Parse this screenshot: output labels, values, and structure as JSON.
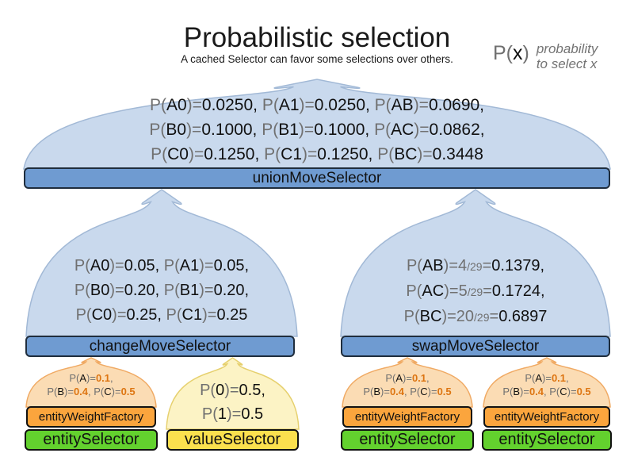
{
  "header": {
    "title": "Probabilistic selection",
    "subtitle": "A cached Selector can favor some selections over others."
  },
  "legend": {
    "symbol_segs": [
      {
        "t": "P(",
        "c": "g"
      },
      {
        "t": "x",
        "c": "k"
      },
      {
        "t": ")",
        "c": "g"
      }
    ],
    "desc_line1": "probability",
    "desc_line2": "to select x"
  },
  "colors": {
    "blue_dome_fill": "#c9d9ed",
    "blue_dome_stroke": "#a2b9d6",
    "blue_bar_fill": "#6f9bd1",
    "orange_dome_fill": "#fbdcb4",
    "orange_dome_stroke": "#f0aa64",
    "yellow_dome_fill": "#fcf3c5",
    "yellow_dome_stroke": "#e6d06e",
    "orange_bar_fill": "#fba53d",
    "green_bar_fill": "#63d12e",
    "yellow_bar_fill": "#fbe04e",
    "gray_text": "#707070",
    "orange_value_text": "#dd7511"
  },
  "union": {
    "bar_label": "unionMoveSelector",
    "lines": [
      [
        {
          "t": "P(",
          "c": "g"
        },
        {
          "t": "A0",
          "c": "k"
        },
        {
          "t": ")=",
          "c": "g"
        },
        {
          "t": "0.0250, ",
          "c": "k"
        },
        {
          "t": "P(",
          "c": "g"
        },
        {
          "t": "A1",
          "c": "k"
        },
        {
          "t": ")=",
          "c": "g"
        },
        {
          "t": "0.0250, ",
          "c": "k"
        },
        {
          "t": "P(",
          "c": "g"
        },
        {
          "t": "AB",
          "c": "k"
        },
        {
          "t": ")=",
          "c": "g"
        },
        {
          "t": "0.0690,",
          "c": "k"
        }
      ],
      [
        {
          "t": "P(",
          "c": "g"
        },
        {
          "t": "B0",
          "c": "k"
        },
        {
          "t": ")=",
          "c": "g"
        },
        {
          "t": "0.1000, ",
          "c": "k"
        },
        {
          "t": "P(",
          "c": "g"
        },
        {
          "t": "B1",
          "c": "k"
        },
        {
          "t": ")=",
          "c": "g"
        },
        {
          "t": "0.1000, ",
          "c": "k"
        },
        {
          "t": "P(",
          "c": "g"
        },
        {
          "t": "AC",
          "c": "k"
        },
        {
          "t": ")=",
          "c": "g"
        },
        {
          "t": "0.0862,",
          "c": "k"
        }
      ],
      [
        {
          "t": "P(",
          "c": "g"
        },
        {
          "t": "C0",
          "c": "k"
        },
        {
          "t": ")=",
          "c": "g"
        },
        {
          "t": "0.1250, ",
          "c": "k"
        },
        {
          "t": "P(",
          "c": "g"
        },
        {
          "t": "C1",
          "c": "k"
        },
        {
          "t": ")=",
          "c": "g"
        },
        {
          "t": "0.1250, ",
          "c": "k"
        },
        {
          "t": "P(",
          "c": "g"
        },
        {
          "t": "BC",
          "c": "k"
        },
        {
          "t": ")=",
          "c": "g"
        },
        {
          "t": "0.3448",
          "c": "k"
        }
      ]
    ]
  },
  "change": {
    "bar_label": "changeMoveSelector",
    "lines": [
      [
        {
          "t": "P(",
          "c": "g"
        },
        {
          "t": "A0",
          "c": "k"
        },
        {
          "t": ")=",
          "c": "g"
        },
        {
          "t": "0.05, ",
          "c": "k"
        },
        {
          "t": "P(",
          "c": "g"
        },
        {
          "t": "A1",
          "c": "k"
        },
        {
          "t": ")=",
          "c": "g"
        },
        {
          "t": "0.05,",
          "c": "k"
        }
      ],
      [
        {
          "t": "P(",
          "c": "g"
        },
        {
          "t": "B0",
          "c": "k"
        },
        {
          "t": ")=",
          "c": "g"
        },
        {
          "t": "0.20, ",
          "c": "k"
        },
        {
          "t": "P(",
          "c": "g"
        },
        {
          "t": "B1",
          "c": "k"
        },
        {
          "t": ")=",
          "c": "g"
        },
        {
          "t": "0.20,",
          "c": "k"
        }
      ],
      [
        {
          "t": "P(",
          "c": "g"
        },
        {
          "t": "C0",
          "c": "k"
        },
        {
          "t": ")=",
          "c": "g"
        },
        {
          "t": "0.25, ",
          "c": "k"
        },
        {
          "t": "P(",
          "c": "g"
        },
        {
          "t": "C1",
          "c": "k"
        },
        {
          "t": ")=",
          "c": "g"
        },
        {
          "t": "0.25",
          "c": "k"
        }
      ]
    ]
  },
  "swap": {
    "bar_label": "swapMoveSelector",
    "lines": [
      [
        {
          "t": "P(",
          "c": "g"
        },
        {
          "t": "AB",
          "c": "k"
        },
        {
          "t": ")=",
          "c": "g"
        },
        {
          "t": "4",
          "c": "g"
        },
        {
          "t": "/29",
          "c": "s"
        },
        {
          "t": "=",
          "c": "g"
        },
        {
          "t": "0.1379,",
          "c": "k"
        }
      ],
      [
        {
          "t": "P(",
          "c": "g"
        },
        {
          "t": "AC",
          "c": "k"
        },
        {
          "t": ")=",
          "c": "g"
        },
        {
          "t": "5",
          "c": "g"
        },
        {
          "t": "/29",
          "c": "s"
        },
        {
          "t": "=",
          "c": "g"
        },
        {
          "t": "0.1724,",
          "c": "k"
        }
      ],
      [
        {
          "t": "P(",
          "c": "g"
        },
        {
          "t": "BC",
          "c": "k"
        },
        {
          "t": ")=",
          "c": "g"
        },
        {
          "t": "20",
          "c": "g"
        },
        {
          "t": "/29",
          "c": "s"
        },
        {
          "t": "=",
          "c": "g"
        },
        {
          "t": "0.6897",
          "c": "k"
        }
      ]
    ]
  },
  "entity_dome_lines": [
    [
      {
        "t": "P(",
        "c": "g"
      },
      {
        "t": "A",
        "c": "k"
      },
      {
        "t": ")=",
        "c": "g"
      },
      {
        "t": "0.1",
        "c": "o"
      },
      {
        "t": ",",
        "c": "g"
      }
    ],
    [
      {
        "t": "P(",
        "c": "g"
      },
      {
        "t": "B",
        "c": "k"
      },
      {
        "t": ")=",
        "c": "g"
      },
      {
        "t": "0.4",
        "c": "o"
      },
      {
        "t": ", ",
        "c": "g"
      },
      {
        "t": "P(",
        "c": "g"
      },
      {
        "t": "C",
        "c": "k"
      },
      {
        "t": ")=",
        "c": "g"
      },
      {
        "t": "0.5",
        "c": "o"
      }
    ]
  ],
  "value_dome_lines": [
    [
      {
        "t": "P(",
        "c": "g"
      },
      {
        "t": "0",
        "c": "k"
      },
      {
        "t": ")=",
        "c": "g"
      },
      {
        "t": "0.5,",
        "c": "k"
      }
    ],
    [
      {
        "t": "P(",
        "c": "g"
      },
      {
        "t": "1",
        "c": "k"
      },
      {
        "t": ")=",
        "c": "g"
      },
      {
        "t": "0.5",
        "c": "k"
      }
    ]
  ],
  "labels": {
    "entity_weight_factory": "entityWeightFactory",
    "entity_selector": "entitySelector",
    "value_selector": "valueSelector"
  }
}
